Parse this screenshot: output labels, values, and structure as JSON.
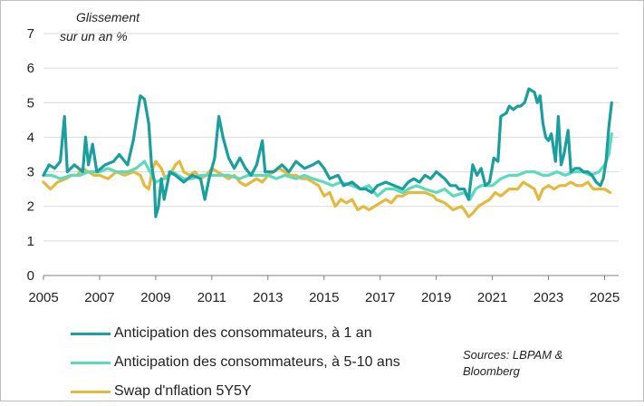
{
  "chart_data": {
    "type": "line",
    "ylabel_line1": "Glissement",
    "ylabel_line2": "sur un an %",
    "ylim": [
      0,
      7
    ],
    "xlim": [
      2005,
      2025.5
    ],
    "y_ticks": [
      "0",
      "1",
      "2",
      "3",
      "4",
      "5",
      "6",
      "7"
    ],
    "x_ticks": [
      "2005",
      "2007",
      "2009",
      "2011",
      "2013",
      "2015",
      "2017",
      "2019",
      "2021",
      "2023",
      "2025"
    ],
    "grid": "horizontal",
    "series": [
      {
        "name": "Anticipation des consommateurs, à 1 an",
        "color": "#1a9e9e",
        "points": [
          [
            2005.0,
            2.9
          ],
          [
            2005.2,
            3.2
          ],
          [
            2005.4,
            3.1
          ],
          [
            2005.6,
            3.3
          ],
          [
            2005.75,
            4.6
          ],
          [
            2005.85,
            3.0
          ],
          [
            2006.1,
            3.2
          ],
          [
            2006.4,
            3.0
          ],
          [
            2006.5,
            4.0
          ],
          [
            2006.6,
            3.2
          ],
          [
            2006.75,
            3.8
          ],
          [
            2006.9,
            3.0
          ],
          [
            2007.2,
            3.2
          ],
          [
            2007.5,
            3.3
          ],
          [
            2007.7,
            3.5
          ],
          [
            2008.0,
            3.2
          ],
          [
            2008.2,
            3.9
          ],
          [
            2008.45,
            5.2
          ],
          [
            2008.6,
            5.1
          ],
          [
            2008.75,
            4.4
          ],
          [
            2008.85,
            3.2
          ],
          [
            2008.95,
            2.7
          ],
          [
            2009.0,
            1.7
          ],
          [
            2009.1,
            2.0
          ],
          [
            2009.2,
            2.8
          ],
          [
            2009.3,
            2.2
          ],
          [
            2009.5,
            3.0
          ],
          [
            2009.7,
            2.9
          ],
          [
            2010.0,
            2.7
          ],
          [
            2010.3,
            2.9
          ],
          [
            2010.6,
            2.8
          ],
          [
            2010.75,
            2.2
          ],
          [
            2010.9,
            2.8
          ],
          [
            2011.1,
            3.4
          ],
          [
            2011.25,
            4.6
          ],
          [
            2011.4,
            4.0
          ],
          [
            2011.6,
            3.4
          ],
          [
            2011.8,
            3.1
          ],
          [
            2012.0,
            3.4
          ],
          [
            2012.2,
            3.1
          ],
          [
            2012.4,
            2.9
          ],
          [
            2012.6,
            3.2
          ],
          [
            2012.8,
            3.9
          ],
          [
            2012.9,
            3.0
          ],
          [
            2013.2,
            3.0
          ],
          [
            2013.5,
            3.2
          ],
          [
            2013.75,
            3.0
          ],
          [
            2014.0,
            3.3
          ],
          [
            2014.3,
            3.1
          ],
          [
            2014.6,
            3.2
          ],
          [
            2014.8,
            3.3
          ],
          [
            2015.0,
            3.1
          ],
          [
            2015.2,
            2.8
          ],
          [
            2015.5,
            2.9
          ],
          [
            2015.7,
            2.6
          ],
          [
            2016.0,
            2.7
          ],
          [
            2016.3,
            2.5
          ],
          [
            2016.5,
            2.5
          ],
          [
            2016.7,
            2.4
          ],
          [
            2016.9,
            2.6
          ],
          [
            2017.2,
            2.7
          ],
          [
            2017.5,
            2.6
          ],
          [
            2017.8,
            2.5
          ],
          [
            2018.0,
            2.7
          ],
          [
            2018.2,
            2.8
          ],
          [
            2018.4,
            2.7
          ],
          [
            2018.6,
            2.9
          ],
          [
            2018.8,
            2.8
          ],
          [
            2019.0,
            3.0
          ],
          [
            2019.3,
            2.8
          ],
          [
            2019.5,
            2.6
          ],
          [
            2019.7,
            2.6
          ],
          [
            2019.8,
            2.5
          ],
          [
            2020.0,
            2.5
          ],
          [
            2020.15,
            2.2
          ],
          [
            2020.3,
            3.2
          ],
          [
            2020.45,
            2.9
          ],
          [
            2020.6,
            3.1
          ],
          [
            2020.75,
            2.6
          ],
          [
            2020.9,
            2.7
          ],
          [
            2021.05,
            3.4
          ],
          [
            2021.2,
            3.3
          ],
          [
            2021.3,
            4.6
          ],
          [
            2021.5,
            4.7
          ],
          [
            2021.6,
            4.9
          ],
          [
            2021.75,
            4.8
          ],
          [
            2021.9,
            4.9
          ],
          [
            2022.0,
            4.9
          ],
          [
            2022.15,
            5.0
          ],
          [
            2022.3,
            5.4
          ],
          [
            2022.5,
            5.3
          ],
          [
            2022.6,
            5.0
          ],
          [
            2022.7,
            5.2
          ],
          [
            2022.8,
            4.4
          ],
          [
            2022.9,
            4.0
          ],
          [
            2023.0,
            3.9
          ],
          [
            2023.1,
            4.1
          ],
          [
            2023.25,
            3.3
          ],
          [
            2023.35,
            4.6
          ],
          [
            2023.45,
            3.2
          ],
          [
            2023.55,
            3.5
          ],
          [
            2023.7,
            4.2
          ],
          [
            2023.8,
            3.0
          ],
          [
            2023.95,
            3.1
          ],
          [
            2024.1,
            3.1
          ],
          [
            2024.25,
            3.0
          ],
          [
            2024.4,
            3.0
          ],
          [
            2024.55,
            2.9
          ],
          [
            2024.7,
            2.7
          ],
          [
            2024.85,
            2.6
          ],
          [
            2024.95,
            2.8
          ],
          [
            2025.05,
            3.3
          ],
          [
            2025.15,
            4.3
          ],
          [
            2025.25,
            5.0
          ]
        ]
      },
      {
        "name": "Anticipation des consommateurs, à 5-10 ans",
        "color": "#5dd9bd",
        "points": [
          [
            2005.0,
            2.9
          ],
          [
            2005.3,
            2.9
          ],
          [
            2005.6,
            2.8
          ],
          [
            2006.0,
            2.9
          ],
          [
            2006.3,
            2.9
          ],
          [
            2006.6,
            3.0
          ],
          [
            2007.0,
            3.0
          ],
          [
            2007.3,
            3.1
          ],
          [
            2007.6,
            3.0
          ],
          [
            2008.0,
            3.0
          ],
          [
            2008.3,
            3.1
          ],
          [
            2008.6,
            3.3
          ],
          [
            2008.8,
            3.0
          ],
          [
            2009.0,
            2.7
          ],
          [
            2009.3,
            2.8
          ],
          [
            2009.6,
            3.0
          ],
          [
            2010.0,
            2.8
          ],
          [
            2010.3,
            2.8
          ],
          [
            2010.6,
            2.9
          ],
          [
            2011.0,
            2.9
          ],
          [
            2011.3,
            2.9
          ],
          [
            2011.6,
            2.9
          ],
          [
            2012.0,
            2.8
          ],
          [
            2012.3,
            2.9
          ],
          [
            2012.6,
            2.9
          ],
          [
            2013.0,
            2.9
          ],
          [
            2013.3,
            2.8
          ],
          [
            2013.6,
            2.9
          ],
          [
            2014.0,
            2.8
          ],
          [
            2014.3,
            2.9
          ],
          [
            2014.6,
            2.8
          ],
          [
            2015.0,
            2.7
          ],
          [
            2015.3,
            2.6
          ],
          [
            2015.6,
            2.7
          ],
          [
            2016.0,
            2.6
          ],
          [
            2016.3,
            2.5
          ],
          [
            2016.6,
            2.6
          ],
          [
            2016.9,
            2.3
          ],
          [
            2017.2,
            2.5
          ],
          [
            2017.5,
            2.5
          ],
          [
            2017.8,
            2.4
          ],
          [
            2018.0,
            2.5
          ],
          [
            2018.3,
            2.6
          ],
          [
            2018.6,
            2.5
          ],
          [
            2019.0,
            2.4
          ],
          [
            2019.3,
            2.5
          ],
          [
            2019.6,
            2.3
          ],
          [
            2020.0,
            2.4
          ],
          [
            2020.2,
            2.2
          ],
          [
            2020.4,
            2.5
          ],
          [
            2020.6,
            2.6
          ],
          [
            2020.8,
            2.6
          ],
          [
            2021.0,
            2.6
          ],
          [
            2021.3,
            2.8
          ],
          [
            2021.6,
            2.9
          ],
          [
            2021.9,
            2.9
          ],
          [
            2022.2,
            3.0
          ],
          [
            2022.5,
            3.0
          ],
          [
            2022.8,
            2.9
          ],
          [
            2023.0,
            2.9
          ],
          [
            2023.3,
            3.0
          ],
          [
            2023.6,
            2.9
          ],
          [
            2023.9,
            3.0
          ],
          [
            2024.2,
            3.0
          ],
          [
            2024.5,
            2.9
          ],
          [
            2024.8,
            3.0
          ],
          [
            2025.0,
            3.2
          ],
          [
            2025.15,
            3.5
          ],
          [
            2025.25,
            4.1
          ]
        ]
      },
      {
        "name": "Swap d'nflation 5Y5Y",
        "color": "#e3b93e",
        "points": [
          [
            2005.0,
            2.7
          ],
          [
            2005.25,
            2.5
          ],
          [
            2005.5,
            2.7
          ],
          [
            2005.8,
            2.8
          ],
          [
            2006.0,
            2.9
          ],
          [
            2006.2,
            2.9
          ],
          [
            2006.4,
            3.1
          ],
          [
            2006.6,
            3.0
          ],
          [
            2006.8,
            2.9
          ],
          [
            2007.0,
            2.9
          ],
          [
            2007.3,
            2.8
          ],
          [
            2007.6,
            3.0
          ],
          [
            2007.9,
            2.9
          ],
          [
            2008.2,
            3.0
          ],
          [
            2008.45,
            2.9
          ],
          [
            2008.6,
            2.6
          ],
          [
            2008.75,
            2.5
          ],
          [
            2008.9,
            3.1
          ],
          [
            2009.0,
            3.3
          ],
          [
            2009.2,
            3.1
          ],
          [
            2009.35,
            2.8
          ],
          [
            2009.5,
            2.9
          ],
          [
            2009.7,
            3.2
          ],
          [
            2009.85,
            3.3
          ],
          [
            2010.0,
            3.0
          ],
          [
            2010.2,
            2.9
          ],
          [
            2010.4,
            3.0
          ],
          [
            2010.6,
            2.8
          ],
          [
            2010.8,
            2.9
          ],
          [
            2011.0,
            3.1
          ],
          [
            2011.2,
            3.0
          ],
          [
            2011.4,
            2.9
          ],
          [
            2011.6,
            2.8
          ],
          [
            2011.8,
            2.9
          ],
          [
            2012.0,
            2.7
          ],
          [
            2012.2,
            2.6
          ],
          [
            2012.4,
            2.7
          ],
          [
            2012.6,
            2.8
          ],
          [
            2012.8,
            2.7
          ],
          [
            2013.0,
            2.9
          ],
          [
            2013.2,
            3.0
          ],
          [
            2013.4,
            3.1
          ],
          [
            2013.6,
            3.0
          ],
          [
            2013.8,
            2.9
          ],
          [
            2014.0,
            2.9
          ],
          [
            2014.2,
            2.8
          ],
          [
            2014.4,
            2.8
          ],
          [
            2014.6,
            2.7
          ],
          [
            2014.8,
            2.6
          ],
          [
            2015.0,
            2.3
          ],
          [
            2015.2,
            2.4
          ],
          [
            2015.4,
            2.0
          ],
          [
            2015.6,
            2.2
          ],
          [
            2015.8,
            2.1
          ],
          [
            2016.0,
            2.2
          ],
          [
            2016.2,
            1.9
          ],
          [
            2016.4,
            2.0
          ],
          [
            2016.6,
            1.9
          ],
          [
            2016.8,
            2.0
          ],
          [
            2017.0,
            2.1
          ],
          [
            2017.2,
            2.2
          ],
          [
            2017.4,
            2.1
          ],
          [
            2017.6,
            2.3
          ],
          [
            2017.8,
            2.3
          ],
          [
            2018.0,
            2.4
          ],
          [
            2018.3,
            2.4
          ],
          [
            2018.6,
            2.4
          ],
          [
            2018.9,
            2.3
          ],
          [
            2019.0,
            2.2
          ],
          [
            2019.3,
            2.1
          ],
          [
            2019.6,
            1.9
          ],
          [
            2019.9,
            2.0
          ],
          [
            2020.0,
            1.9
          ],
          [
            2020.15,
            1.7
          ],
          [
            2020.3,
            1.8
          ],
          [
            2020.5,
            2.0
          ],
          [
            2020.7,
            2.1
          ],
          [
            2020.9,
            2.2
          ],
          [
            2021.1,
            2.4
          ],
          [
            2021.3,
            2.3
          ],
          [
            2021.6,
            2.5
          ],
          [
            2021.9,
            2.5
          ],
          [
            2022.1,
            2.7
          ],
          [
            2022.3,
            2.6
          ],
          [
            2022.5,
            2.5
          ],
          [
            2022.65,
            2.2
          ],
          [
            2022.8,
            2.5
          ],
          [
            2023.0,
            2.6
          ],
          [
            2023.2,
            2.5
          ],
          [
            2023.4,
            2.6
          ],
          [
            2023.6,
            2.6
          ],
          [
            2023.8,
            2.7
          ],
          [
            2024.0,
            2.6
          ],
          [
            2024.2,
            2.6
          ],
          [
            2024.4,
            2.7
          ],
          [
            2024.6,
            2.5
          ],
          [
            2024.8,
            2.5
          ],
          [
            2025.0,
            2.5
          ],
          [
            2025.2,
            2.4
          ]
        ]
      }
    ]
  },
  "legend": {
    "items": [
      {
        "label": "Anticipation des consommateurs, à 1 an",
        "color": "#1a9e9e"
      },
      {
        "label": "Anticipation des consommateurs, à 5-10 ans",
        "color": "#5dd9bd"
      },
      {
        "label": "Swap d'nflation 5Y5Y",
        "color": "#e3b93e"
      }
    ]
  },
  "source_line1": "Sources: LBPAM &",
  "source_line2": "Bloomberg"
}
